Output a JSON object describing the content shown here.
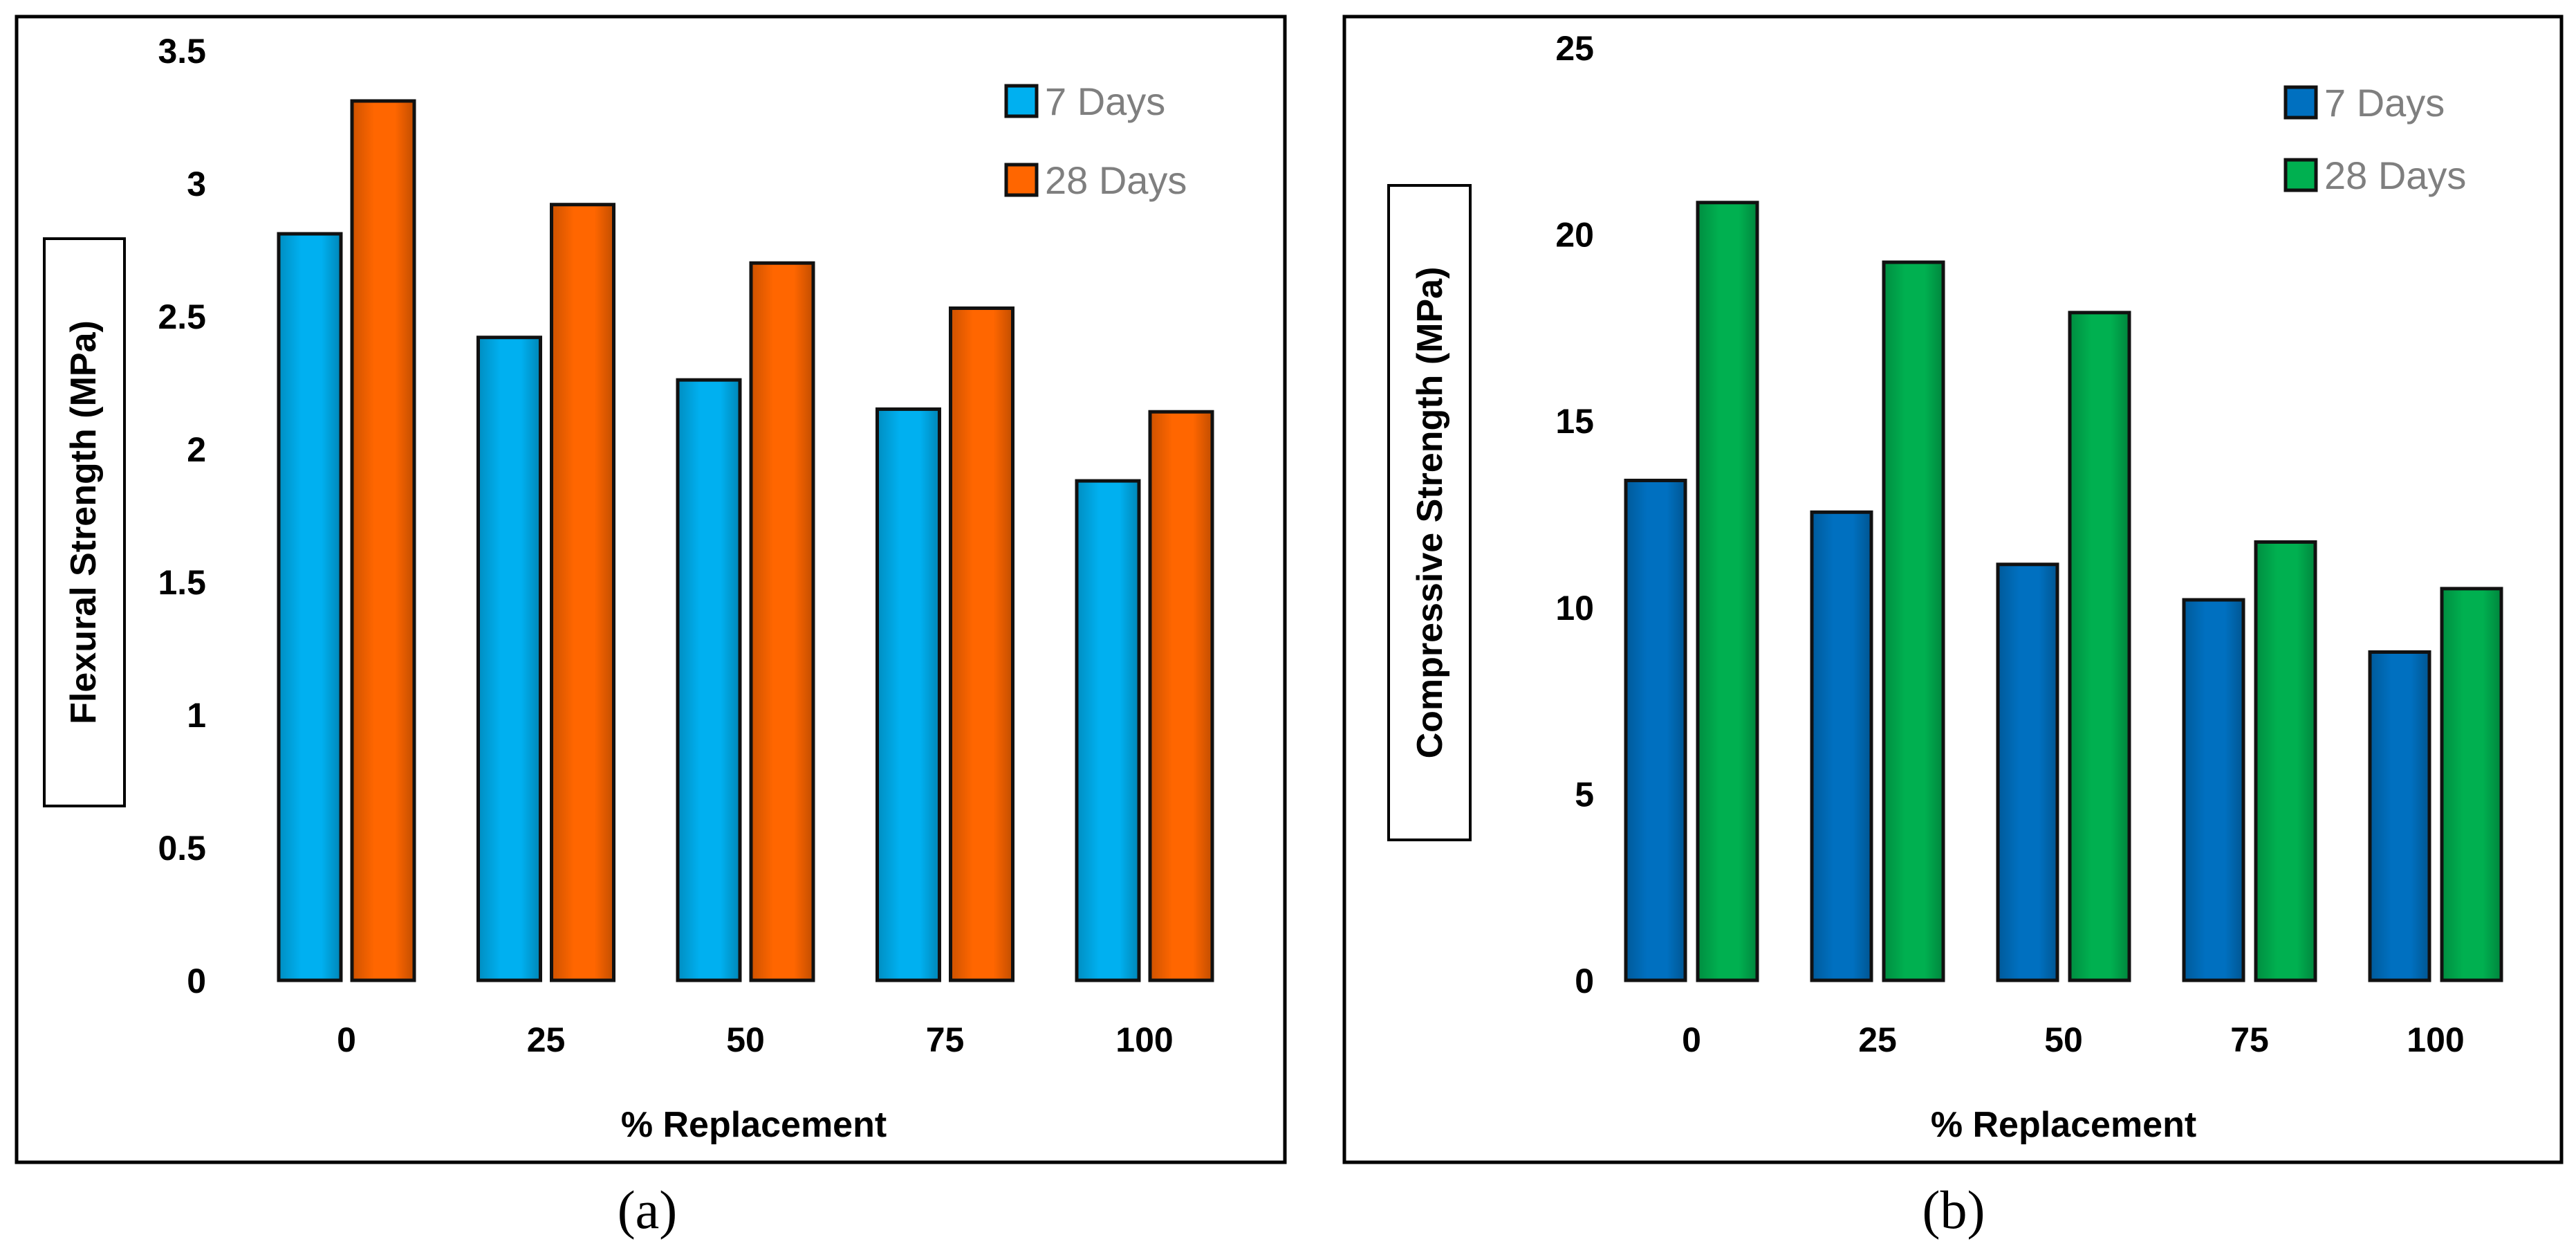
{
  "chart_data": [
    {
      "type": "bar",
      "panel_label": "(a)",
      "categories": [
        "0",
        "25",
        "50",
        "75",
        "100"
      ],
      "series": [
        {
          "name": "7 Days",
          "color": "#00b0f0",
          "values": [
            2.81,
            2.42,
            2.26,
            2.15,
            1.88
          ]
        },
        {
          "name": "28 Days",
          "color": "#ff6600",
          "values": [
            3.31,
            2.92,
            2.7,
            2.53,
            2.14
          ]
        }
      ],
      "xlabel": "% Replacement",
      "ylabel": "Flexural  Strength (MPa)",
      "ylim": [
        0,
        3.5
      ],
      "yticks": [
        "0",
        "0.5",
        "1",
        "1.5",
        "2",
        "2.5",
        "3",
        "3.5"
      ],
      "grid": false,
      "legend": "top-right"
    },
    {
      "type": "bar",
      "panel_label": "(b)",
      "categories": [
        "0",
        "25",
        "50",
        "75",
        "100"
      ],
      "series": [
        {
          "name": "7 Days",
          "color": "#0070c0",
          "values": [
            13.4,
            12.55,
            11.15,
            10.2,
            8.8
          ]
        },
        {
          "name": "28 Days",
          "color": "#00b050",
          "values": [
            20.85,
            19.25,
            17.9,
            11.75,
            10.5
          ]
        }
      ],
      "xlabel": "% Replacement",
      "ylabel": "Compressive Strength (MPa)",
      "ylim": [
        0,
        25
      ],
      "yticks": [
        "0",
        "5",
        "10",
        "15",
        "20",
        "25"
      ],
      "grid": false,
      "legend": "top-right"
    }
  ]
}
